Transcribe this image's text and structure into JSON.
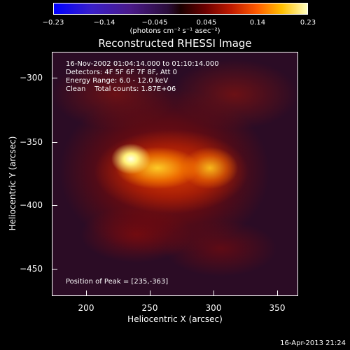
{
  "colorbar": {
    "ticks": [
      "−0.23",
      "−0.14",
      "−0.045",
      "0.045",
      "0.14",
      "0.23"
    ],
    "units": "(photons cm⁻² s⁻¹ asec⁻²)"
  },
  "title": "Reconstructed RHESSI Image",
  "info": {
    "line1": "16-Nov-2002 01:04:14.000 to 01:10:14.000",
    "line2": "Detectors: 4F 5F 6F 7F 8F, Att 0",
    "line3": "Energy Range: 6.0 - 12.0 keV",
    "line4": "Clean    Total counts: 1.87E+06",
    "peak": "Position of Peak = [235,-363]"
  },
  "axes": {
    "xlabel": "Heliocentric X (arcsec)",
    "ylabel": "Heliocentric Y (arcsec)",
    "xticks": [
      "200",
      "250",
      "300",
      "350"
    ],
    "yticks": [
      "−300",
      "−350",
      "−400",
      "−450"
    ]
  },
  "datestamp": "16-Apr-2013 21:24"
}
